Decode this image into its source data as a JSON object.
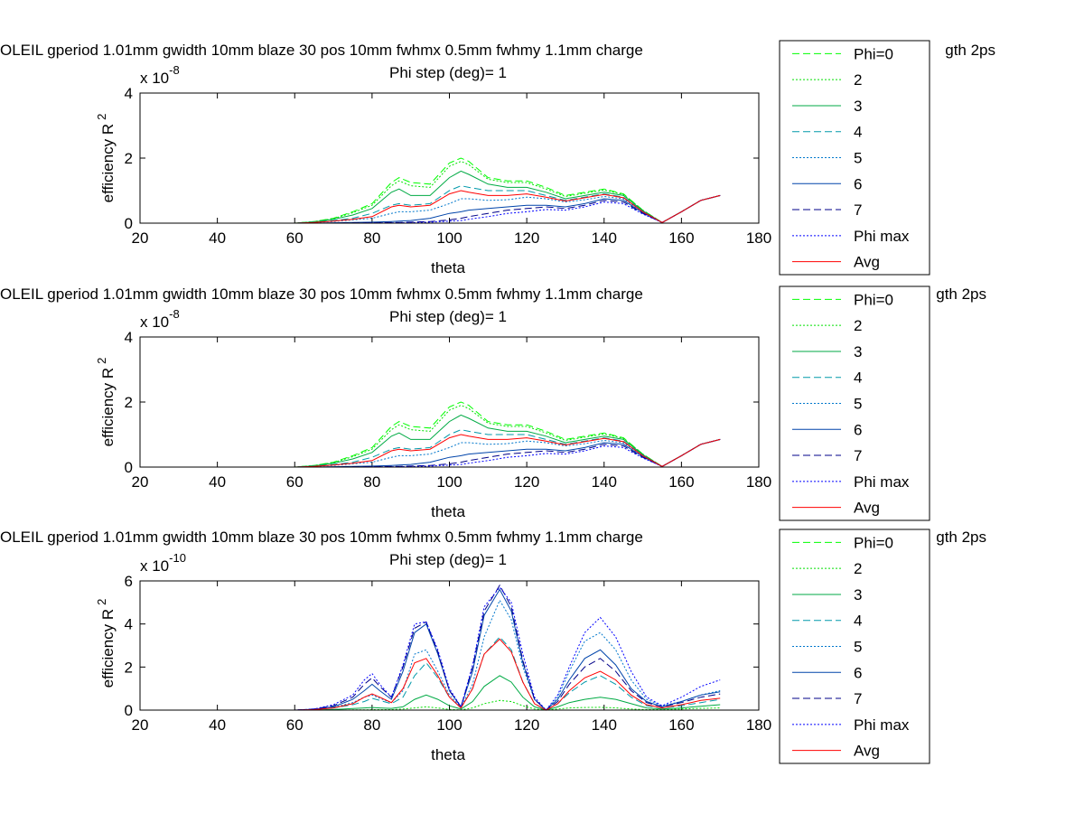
{
  "colors": {
    "phi0": "#00ff00",
    "p2": "#00e000",
    "p3": "#00aa44",
    "p4": "#0099aa",
    "p5": "#0077cc",
    "p6": "#0044aa",
    "p7": "#000088",
    "phimax": "#0000ff",
    "avg": "#ff0000"
  },
  "chart_data": [
    {
      "type": "line",
      "title": "OLEIL gperiod 1.01mm gwidth 10mm blaze 30 pos 10mm fwhmx 0.5mm fwhmy 1.1mm charge",
      "title_tail": "gth 2ps",
      "subtitle": "Phi step (deg)= 1",
      "xlabel": "theta",
      "ylabel": "efficiency R",
      "ylabel_sup": "2",
      "exponent_prefix": "x 10",
      "exponent": "-8",
      "xlim": [
        20,
        180
      ],
      "ylim": [
        0,
        4
      ],
      "xticks": [
        "20",
        "40",
        "60",
        "80",
        "100",
        "120",
        "140",
        "160",
        "180"
      ],
      "yticks": [
        "0",
        "2",
        "4"
      ],
      "legend_position": "right",
      "legend": [
        "Phi=0",
        "2",
        "3",
        "4",
        "5",
        "6",
        "7",
        "Phi max",
        "Avg"
      ],
      "x": [
        30,
        60,
        65,
        70,
        75,
        80,
        85,
        87,
        90,
        95,
        100,
        103,
        105,
        110,
        115,
        120,
        125,
        130,
        135,
        140,
        145,
        150,
        155,
        160,
        165,
        170
      ],
      "series": [
        {
          "name": "Phi=0",
          "values": [
            0,
            0,
            0.05,
            0.15,
            0.35,
            0.6,
            1.25,
            1.4,
            1.25,
            1.2,
            1.85,
            2.0,
            1.9,
            1.4,
            1.3,
            1.3,
            1.1,
            0.85,
            0.95,
            1.05,
            0.9,
            0.4,
            0.02,
            0.35,
            0.7,
            0.85
          ]
        },
        {
          "name": "2",
          "values": [
            0,
            0,
            0.05,
            0.14,
            0.32,
            0.55,
            1.15,
            1.3,
            1.15,
            1.1,
            1.75,
            1.9,
            1.8,
            1.35,
            1.25,
            1.25,
            1.05,
            0.82,
            0.92,
            1.02,
            0.88,
            0.4,
            0.02,
            0.35,
            0.7,
            0.85
          ]
        },
        {
          "name": "3",
          "values": [
            0,
            0,
            0.04,
            0.12,
            0.25,
            0.45,
            0.95,
            1.05,
            0.85,
            0.85,
            1.4,
            1.6,
            1.5,
            1.2,
            1.1,
            1.1,
            0.95,
            0.75,
            0.85,
            0.95,
            0.85,
            0.38,
            0.02,
            0.35,
            0.7,
            0.85
          ]
        },
        {
          "name": "4",
          "values": [
            0,
            0,
            0.03,
            0.08,
            0.15,
            0.3,
            0.55,
            0.6,
            0.55,
            0.6,
            1.0,
            1.15,
            1.1,
            1.0,
            1.0,
            1.0,
            0.85,
            0.7,
            0.8,
            0.9,
            0.8,
            0.36,
            0.02,
            0.35,
            0.7,
            0.85
          ]
        },
        {
          "name": "5",
          "values": [
            0,
            0,
            0.02,
            0.05,
            0.1,
            0.15,
            0.3,
            0.35,
            0.35,
            0.4,
            0.6,
            0.75,
            0.75,
            0.7,
            0.72,
            0.8,
            0.75,
            0.65,
            0.72,
            0.82,
            0.75,
            0.34,
            0.02,
            0.35,
            0.7,
            0.85
          ]
        },
        {
          "name": "6",
          "values": [
            0,
            0,
            0,
            0.01,
            0.02,
            0.03,
            0.05,
            0.06,
            0.08,
            0.15,
            0.3,
            0.35,
            0.4,
            0.45,
            0.5,
            0.55,
            0.55,
            0.5,
            0.6,
            0.75,
            0.7,
            0.32,
            0.02,
            0.35,
            0.7,
            0.85
          ]
        },
        {
          "name": "7",
          "values": [
            0,
            0,
            0,
            0,
            0.01,
            0.01,
            0.02,
            0.02,
            0.03,
            0.05,
            0.1,
            0.15,
            0.2,
            0.3,
            0.4,
            0.45,
            0.5,
            0.45,
            0.55,
            0.7,
            0.65,
            0.3,
            0.02,
            0.35,
            0.7,
            0.85
          ]
        },
        {
          "name": "Phi max",
          "values": [
            0,
            0,
            0,
            0,
            0,
            0.01,
            0.01,
            0.01,
            0.02,
            0.03,
            0.06,
            0.08,
            0.12,
            0.2,
            0.3,
            0.35,
            0.42,
            0.4,
            0.5,
            0.65,
            0.6,
            0.28,
            0.02,
            0.35,
            0.7,
            0.85
          ]
        },
        {
          "name": "Avg",
          "values": [
            0,
            0,
            0.02,
            0.06,
            0.12,
            0.2,
            0.5,
            0.55,
            0.5,
            0.55,
            0.9,
            1.0,
            0.95,
            0.85,
            0.85,
            0.9,
            0.8,
            0.68,
            0.78,
            0.88,
            0.78,
            0.35,
            0.02,
            0.35,
            0.7,
            0.85
          ]
        }
      ]
    },
    {
      "type": "line",
      "title": "OLEIL gperiod 1.01mm gwidth 10mm blaze 30 pos 10mm fwhmx 0.5mm fwhmy 1.1mm charge",
      "title_tail": "gth 2ps",
      "subtitle": "Phi step (deg)= 1",
      "xlabel": "theta",
      "ylabel": "efficiency R",
      "ylabel_sup": "2",
      "exponent_prefix": "x 10",
      "exponent": "-8",
      "xlim": [
        20,
        180
      ],
      "ylim": [
        0,
        4
      ],
      "xticks": [
        "20",
        "40",
        "60",
        "80",
        "100",
        "120",
        "140",
        "160",
        "180"
      ],
      "yticks": [
        "0",
        "2",
        "4"
      ],
      "legend_position": "right",
      "legend": [
        "Phi=0",
        "2",
        "3",
        "4",
        "5",
        "6",
        "7",
        "Phi max",
        "Avg"
      ],
      "x": [
        30,
        60,
        65,
        70,
        75,
        80,
        85,
        87,
        90,
        95,
        100,
        103,
        105,
        110,
        115,
        120,
        125,
        130,
        135,
        140,
        145,
        150,
        155,
        160,
        165,
        170
      ],
      "series": [
        {
          "name": "Phi=0",
          "values": [
            0,
            0,
            0.05,
            0.15,
            0.35,
            0.6,
            1.25,
            1.4,
            1.25,
            1.2,
            1.85,
            2.0,
            1.9,
            1.4,
            1.3,
            1.3,
            1.1,
            0.85,
            0.95,
            1.05,
            0.9,
            0.4,
            0.02,
            0.35,
            0.7,
            0.85
          ]
        },
        {
          "name": "2",
          "values": [
            0,
            0,
            0.05,
            0.14,
            0.32,
            0.55,
            1.15,
            1.3,
            1.15,
            1.1,
            1.75,
            1.9,
            1.8,
            1.35,
            1.25,
            1.25,
            1.05,
            0.82,
            0.92,
            1.02,
            0.88,
            0.4,
            0.02,
            0.35,
            0.7,
            0.85
          ]
        },
        {
          "name": "3",
          "values": [
            0,
            0,
            0.04,
            0.12,
            0.25,
            0.45,
            0.95,
            1.05,
            0.85,
            0.85,
            1.4,
            1.6,
            1.5,
            1.2,
            1.1,
            1.1,
            0.95,
            0.75,
            0.85,
            0.95,
            0.85,
            0.38,
            0.02,
            0.35,
            0.7,
            0.85
          ]
        },
        {
          "name": "4",
          "values": [
            0,
            0,
            0.03,
            0.08,
            0.15,
            0.3,
            0.55,
            0.6,
            0.55,
            0.6,
            1.0,
            1.15,
            1.1,
            1.0,
            1.0,
            1.0,
            0.85,
            0.7,
            0.8,
            0.9,
            0.8,
            0.36,
            0.02,
            0.35,
            0.7,
            0.85
          ]
        },
        {
          "name": "5",
          "values": [
            0,
            0,
            0.02,
            0.05,
            0.1,
            0.15,
            0.3,
            0.35,
            0.35,
            0.4,
            0.6,
            0.75,
            0.75,
            0.7,
            0.72,
            0.8,
            0.75,
            0.65,
            0.72,
            0.82,
            0.75,
            0.34,
            0.02,
            0.35,
            0.7,
            0.85
          ]
        },
        {
          "name": "6",
          "values": [
            0,
            0,
            0,
            0.01,
            0.02,
            0.03,
            0.05,
            0.06,
            0.08,
            0.15,
            0.3,
            0.35,
            0.4,
            0.45,
            0.5,
            0.55,
            0.55,
            0.5,
            0.6,
            0.75,
            0.7,
            0.32,
            0.02,
            0.35,
            0.7,
            0.85
          ]
        },
        {
          "name": "7",
          "values": [
            0,
            0,
            0,
            0,
            0.01,
            0.01,
            0.02,
            0.02,
            0.03,
            0.05,
            0.1,
            0.15,
            0.2,
            0.3,
            0.4,
            0.45,
            0.5,
            0.45,
            0.55,
            0.7,
            0.65,
            0.3,
            0.02,
            0.35,
            0.7,
            0.85
          ]
        },
        {
          "name": "Phi max",
          "values": [
            0,
            0,
            0,
            0,
            0,
            0.01,
            0.01,
            0.01,
            0.02,
            0.03,
            0.06,
            0.08,
            0.12,
            0.2,
            0.3,
            0.35,
            0.42,
            0.4,
            0.5,
            0.65,
            0.6,
            0.28,
            0.02,
            0.35,
            0.7,
            0.85
          ]
        },
        {
          "name": "Avg",
          "values": [
            0,
            0,
            0.02,
            0.06,
            0.12,
            0.2,
            0.5,
            0.55,
            0.5,
            0.55,
            0.9,
            1.0,
            0.95,
            0.85,
            0.85,
            0.9,
            0.8,
            0.68,
            0.78,
            0.88,
            0.78,
            0.35,
            0.02,
            0.35,
            0.7,
            0.85
          ]
        }
      ]
    },
    {
      "type": "line",
      "title": "OLEIL gperiod 1.01mm gwidth 10mm blaze 30 pos 10mm fwhmx 0.5mm fwhmy 1.1mm charge",
      "title_tail": "gth 2ps",
      "subtitle": "Phi step (deg)= 1",
      "xlabel": "theta",
      "ylabel": "efficiency R",
      "ylabel_sup": "2",
      "exponent_prefix": "x 10",
      "exponent": "-10",
      "xlim": [
        20,
        180
      ],
      "ylim": [
        0,
        6
      ],
      "xticks": [
        "20",
        "40",
        "60",
        "80",
        "100",
        "120",
        "140",
        "160",
        "180"
      ],
      "yticks": [
        "0",
        "2",
        "4",
        "6"
      ],
      "legend_position": "right",
      "legend": [
        "Phi=0",
        "2",
        "3",
        "4",
        "5",
        "6",
        "7",
        "Phi max",
        "Avg"
      ],
      "x": [
        30,
        60,
        65,
        70,
        75,
        78,
        80,
        82,
        85,
        88,
        91,
        94,
        97,
        100,
        103,
        106,
        109,
        113,
        116,
        119,
        122,
        125,
        128,
        131,
        135,
        139,
        143,
        147,
        151,
        155,
        160,
        165,
        170
      ],
      "series": [
        {
          "name": "Phi=0",
          "values": [
            0,
            0,
            0,
            0,
            0,
            0,
            0,
            0,
            0,
            0,
            0,
            0,
            0,
            0,
            0,
            0,
            0,
            0,
            0,
            0,
            0,
            0,
            0,
            0,
            0,
            0,
            0,
            0,
            0,
            0,
            0,
            0,
            0
          ]
        },
        {
          "name": "2",
          "values": [
            0,
            0,
            0,
            0,
            0.01,
            0.01,
            0.02,
            0.02,
            0.02,
            0.05,
            0.1,
            0.15,
            0.1,
            0.03,
            0.01,
            0.1,
            0.3,
            0.45,
            0.4,
            0.2,
            0.05,
            0,
            0.05,
            0.1,
            0.12,
            0.13,
            0.1,
            0.05,
            0.02,
            0.02,
            0.05,
            0.08,
            0.1
          ]
        },
        {
          "name": "3",
          "values": [
            0,
            0,
            0,
            0.03,
            0.07,
            0.1,
            0.12,
            0.1,
            0.08,
            0.15,
            0.5,
            0.7,
            0.5,
            0.2,
            0.05,
            0.4,
            1.1,
            1.6,
            1.3,
            0.6,
            0.15,
            0,
            0.15,
            0.35,
            0.5,
            0.6,
            0.5,
            0.3,
            0.1,
            0.05,
            0.1,
            0.18,
            0.25
          ]
        },
        {
          "name": "4",
          "values": [
            0,
            0,
            0.02,
            0.1,
            0.25,
            0.4,
            0.55,
            0.45,
            0.3,
            0.6,
            1.6,
            2.2,
            1.5,
            0.6,
            0.1,
            1.0,
            2.6,
            3.4,
            2.8,
            1.3,
            0.3,
            0,
            0.3,
            0.8,
            1.3,
            1.6,
            1.2,
            0.6,
            0.2,
            0.1,
            0.2,
            0.35,
            0.5
          ]
        },
        {
          "name": "5",
          "values": [
            0,
            0,
            0.02,
            0.12,
            0.35,
            0.6,
            0.7,
            0.55,
            0.35,
            0.9,
            2.6,
            2.8,
            1.8,
            0.7,
            0.12,
            1.2,
            3.4,
            5.1,
            4.2,
            2.0,
            0.5,
            0,
            0.6,
            1.8,
            3.2,
            3.6,
            2.8,
            1.4,
            0.5,
            0.2,
            0.4,
            0.7,
            0.9
          ]
        },
        {
          "name": "6",
          "values": [
            0,
            0,
            0.04,
            0.15,
            0.5,
            0.9,
            1.2,
            0.9,
            0.5,
            1.8,
            3.6,
            4.0,
            2.6,
            0.9,
            0.15,
            1.8,
            4.4,
            5.6,
            4.6,
            2.2,
            0.5,
            0,
            0.5,
            1.4,
            2.4,
            2.8,
            2.1,
            1.0,
            0.4,
            0.15,
            0.4,
            0.7,
            0.85
          ]
        },
        {
          "name": "7",
          "values": [
            0,
            0,
            0.05,
            0.2,
            0.6,
            1.2,
            1.5,
            1.1,
            0.6,
            2.0,
            3.8,
            4.1,
            2.7,
            0.9,
            0.15,
            2.0,
            4.6,
            5.8,
            4.8,
            2.3,
            0.5,
            0,
            0.4,
            1.2,
            2.0,
            2.4,
            1.8,
            0.9,
            0.35,
            0.15,
            0.35,
            0.6,
            0.75
          ]
        },
        {
          "name": "Phi max",
          "values": [
            0,
            0,
            0.05,
            0.25,
            0.7,
            1.4,
            1.7,
            1.2,
            0.6,
            2.1,
            4.0,
            4.1,
            2.8,
            1.0,
            0.15,
            2.1,
            4.8,
            5.7,
            5.0,
            2.6,
            0.6,
            0,
            0.7,
            2.0,
            3.6,
            4.3,
            3.4,
            1.8,
            0.6,
            0.2,
            0.6,
            1.1,
            1.4
          ]
        },
        {
          "name": "Avg",
          "values": [
            0,
            0,
            0.02,
            0.1,
            0.3,
            0.6,
            0.75,
            0.6,
            0.35,
            1.0,
            2.2,
            2.4,
            1.6,
            0.6,
            0.1,
            1.0,
            2.6,
            3.3,
            2.7,
            1.3,
            0.3,
            0,
            0.3,
            0.9,
            1.5,
            1.8,
            1.4,
            0.7,
            0.25,
            0.1,
            0.25,
            0.45,
            0.55
          ]
        }
      ]
    }
  ]
}
